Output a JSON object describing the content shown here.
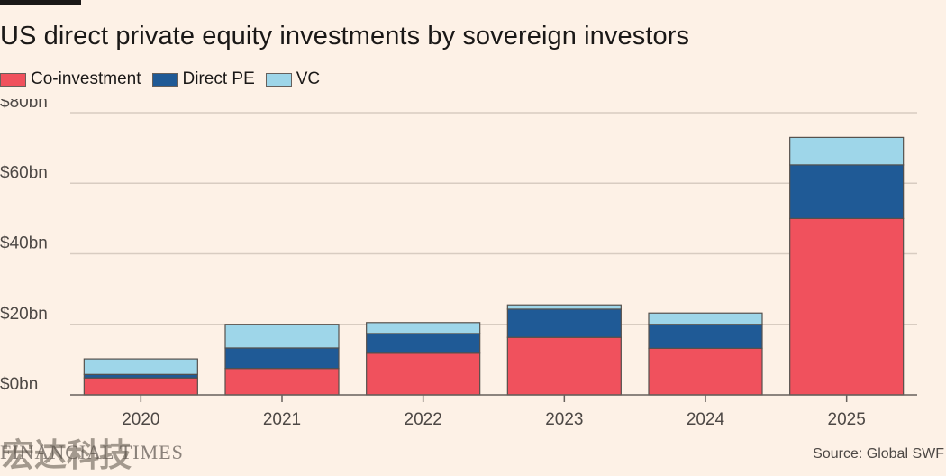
{
  "chart_data": {
    "type": "bar",
    "stacked": true,
    "title": "US direct private equity investments by sovereign investors",
    "categories": [
      "2020",
      "2021",
      "2022",
      "2023",
      "2024",
      "2025"
    ],
    "series": [
      {
        "name": "Co-investment",
        "color": "#f0515d",
        "values": [
          4.8,
          7.5,
          11.8,
          16.3,
          13.2,
          50.0
        ]
      },
      {
        "name": "Direct PE",
        "color": "#1f5a96",
        "values": [
          1.0,
          5.8,
          5.6,
          8.0,
          6.8,
          15.2
        ]
      },
      {
        "name": "VC",
        "color": "#9ed6e9",
        "values": [
          4.4,
          6.7,
          3.1,
          1.2,
          3.2,
          7.8
        ]
      }
    ],
    "ylim": [
      0,
      80
    ],
    "yticks": [
      0,
      20,
      40,
      60,
      80
    ],
    "ytick_labels": [
      "$0bn",
      "$20bn",
      "$40bn",
      "$60bn",
      "$80bn"
    ],
    "grid": true,
    "legend_position": "top-left"
  },
  "footer": {
    "brand": "FINANCIAL TIMES",
    "watermark": "宏达科技",
    "source": "Source: Global SWF"
  }
}
